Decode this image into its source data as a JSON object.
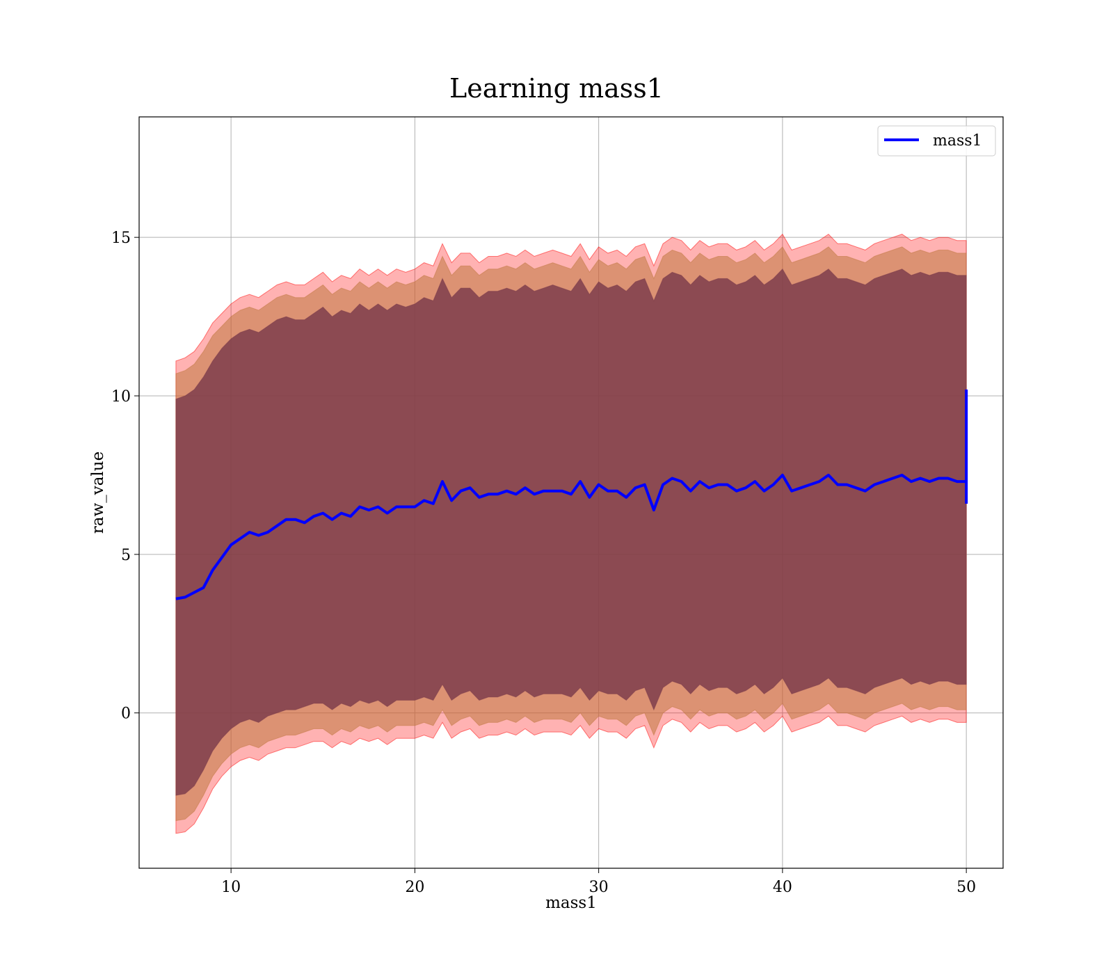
{
  "chart_data": {
    "type": "line",
    "title": "Learning mass1",
    "xlabel": "mass1",
    "ylabel": "raw_value",
    "xlim": [
      5,
      52
    ],
    "ylim": [
      -4.9,
      18.8
    ],
    "xticks": [
      10,
      20,
      30,
      40,
      50
    ],
    "xtick_labels": [
      "10",
      "20",
      "30",
      "40",
      "50"
    ],
    "yticks": [
      0,
      5,
      10,
      15
    ],
    "ytick_labels": [
      "0",
      "5",
      "10",
      "15"
    ],
    "grid": true,
    "legend": {
      "position": "top-right",
      "entries": [
        "mass1"
      ]
    },
    "colors": {
      "mean_line": "#0000ff",
      "band_outer": "#ff0000",
      "band_middle": "#c07840",
      "band_inner": "#7a3a4a",
      "grid": "#b0b0b0"
    },
    "series": [
      {
        "name": "mass1",
        "x": [
          7.0,
          7.5,
          8.0,
          8.5,
          9.0,
          9.5,
          10.0,
          10.5,
          11.0,
          11.5,
          12.0,
          12.5,
          13.0,
          13.5,
          14.0,
          14.5,
          15.0,
          15.5,
          16.0,
          16.5,
          17.0,
          17.5,
          18.0,
          18.5,
          19.0,
          19.5,
          20.0,
          20.5,
          21.0,
          21.5,
          22.0,
          22.5,
          23.0,
          23.5,
          24.0,
          24.5,
          25.0,
          25.5,
          26.0,
          26.5,
          27.0,
          27.5,
          28.0,
          28.5,
          29.0,
          29.5,
          30.0,
          30.5,
          31.0,
          31.5,
          32.0,
          32.5,
          33.0,
          33.5,
          34.0,
          34.5,
          35.0,
          35.5,
          36.0,
          36.5,
          37.0,
          37.5,
          38.0,
          38.5,
          39.0,
          39.5,
          40.0,
          40.5,
          41.0,
          41.5,
          42.0,
          42.5,
          43.0,
          43.5,
          44.0,
          44.5,
          45.0,
          45.5,
          46.0,
          46.5,
          47.0,
          47.5,
          48.0,
          48.5,
          49.0,
          49.5,
          50.0
        ],
        "y": [
          3.6,
          3.65,
          3.8,
          3.95,
          4.5,
          4.9,
          5.3,
          5.5,
          5.7,
          5.6,
          5.7,
          5.9,
          6.1,
          6.1,
          6.0,
          6.2,
          6.3,
          6.1,
          6.3,
          6.2,
          6.5,
          6.4,
          6.5,
          6.3,
          6.5,
          6.5,
          6.5,
          6.7,
          6.6,
          7.3,
          6.7,
          7.0,
          7.1,
          6.8,
          6.9,
          6.9,
          7.0,
          6.9,
          7.1,
          6.9,
          7.0,
          7.0,
          7.0,
          6.9,
          7.3,
          6.8,
          7.2,
          7.0,
          7.0,
          6.8,
          7.1,
          7.2,
          6.4,
          7.2,
          7.4,
          7.3,
          7.0,
          7.3,
          7.1,
          7.2,
          7.2,
          7.0,
          7.1,
          7.3,
          7.0,
          7.2,
          7.5,
          7.0,
          7.1,
          7.2,
          7.3,
          7.5,
          7.2,
          7.2,
          7.1,
          7.0,
          7.2,
          7.3,
          7.4,
          7.5,
          7.3,
          7.4,
          7.3,
          7.4,
          7.4,
          7.3,
          7.3
        ],
        "y_end_spike": [
          6.6,
          10.2
        ]
      }
    ],
    "bands": [
      {
        "upper": [
          11.1,
          11.2,
          11.4,
          11.8,
          12.3,
          12.6,
          12.9,
          13.1,
          13.2,
          13.1,
          13.3,
          13.5,
          13.6,
          13.5,
          13.5,
          13.7,
          13.9,
          13.6,
          13.8,
          13.7,
          14.0,
          13.8,
          14.0,
          13.8,
          14.0,
          13.9,
          14.0,
          14.2,
          14.1,
          14.8,
          14.2,
          14.5,
          14.5,
          14.2,
          14.4,
          14.4,
          14.5,
          14.4,
          14.6,
          14.4,
          14.5,
          14.6,
          14.5,
          14.4,
          14.8,
          14.3,
          14.7,
          14.5,
          14.6,
          14.4,
          14.7,
          14.8,
          14.1,
          14.8,
          15.0,
          14.9,
          14.6,
          14.9,
          14.7,
          14.8,
          14.8,
          14.6,
          14.7,
          14.9,
          14.6,
          14.8,
          15.1,
          14.6,
          14.7,
          14.8,
          14.9,
          15.1,
          14.8,
          14.8,
          14.7,
          14.6,
          14.8,
          14.9,
          15.0,
          15.1,
          14.9,
          15.0,
          14.9,
          15.0,
          15.0,
          14.9,
          14.9
        ],
        "lower": [
          -3.8,
          -3.75,
          -3.5,
          -3.0,
          -2.4,
          -2.0,
          -1.7,
          -1.5,
          -1.4,
          -1.5,
          -1.3,
          -1.2,
          -1.1,
          -1.1,
          -1.0,
          -0.9,
          -0.9,
          -1.1,
          -0.9,
          -1.0,
          -0.8,
          -0.9,
          -0.8,
          -1.0,
          -0.8,
          -0.8,
          -0.8,
          -0.7,
          -0.8,
          -0.3,
          -0.8,
          -0.6,
          -0.5,
          -0.8,
          -0.7,
          -0.7,
          -0.6,
          -0.7,
          -0.5,
          -0.7,
          -0.6,
          -0.6,
          -0.6,
          -0.7,
          -0.4,
          -0.8,
          -0.5,
          -0.6,
          -0.6,
          -0.8,
          -0.5,
          -0.4,
          -1.1,
          -0.4,
          -0.2,
          -0.3,
          -0.6,
          -0.3,
          -0.5,
          -0.4,
          -0.4,
          -0.6,
          -0.5,
          -0.3,
          -0.6,
          -0.4,
          -0.1,
          -0.6,
          -0.5,
          -0.4,
          -0.3,
          -0.1,
          -0.4,
          -0.4,
          -0.5,
          -0.6,
          -0.4,
          -0.3,
          -0.2,
          -0.1,
          -0.3,
          -0.2,
          -0.3,
          -0.2,
          -0.2,
          -0.3,
          -0.3
        ]
      },
      {
        "upper": [
          10.7,
          10.8,
          11.0,
          11.4,
          11.9,
          12.2,
          12.5,
          12.7,
          12.8,
          12.7,
          12.9,
          13.1,
          13.2,
          13.1,
          13.1,
          13.3,
          13.5,
          13.2,
          13.4,
          13.3,
          13.6,
          13.4,
          13.6,
          13.4,
          13.6,
          13.5,
          13.6,
          13.8,
          13.7,
          14.4,
          13.8,
          14.1,
          14.1,
          13.8,
          14.0,
          14.0,
          14.1,
          14.0,
          14.2,
          14.0,
          14.1,
          14.2,
          14.1,
          14.0,
          14.4,
          13.9,
          14.3,
          14.1,
          14.2,
          14.0,
          14.3,
          14.4,
          13.7,
          14.4,
          14.6,
          14.5,
          14.2,
          14.5,
          14.3,
          14.4,
          14.4,
          14.2,
          14.3,
          14.5,
          14.2,
          14.4,
          14.7,
          14.2,
          14.3,
          14.4,
          14.5,
          14.7,
          14.4,
          14.4,
          14.3,
          14.2,
          14.4,
          14.5,
          14.6,
          14.7,
          14.5,
          14.6,
          14.5,
          14.6,
          14.6,
          14.5,
          14.5
        ],
        "lower": [
          -3.4,
          -3.35,
          -3.1,
          -2.6,
          -2.0,
          -1.6,
          -1.3,
          -1.1,
          -1.0,
          -1.1,
          -0.9,
          -0.8,
          -0.7,
          -0.7,
          -0.6,
          -0.5,
          -0.5,
          -0.7,
          -0.5,
          -0.6,
          -0.4,
          -0.5,
          -0.4,
          -0.6,
          -0.4,
          -0.4,
          -0.4,
          -0.3,
          -0.4,
          0.1,
          -0.4,
          -0.2,
          -0.1,
          -0.4,
          -0.3,
          -0.3,
          -0.2,
          -0.3,
          -0.1,
          -0.3,
          -0.2,
          -0.2,
          -0.2,
          -0.3,
          0.0,
          -0.4,
          -0.1,
          -0.2,
          -0.2,
          -0.4,
          -0.1,
          0.0,
          -0.7,
          0.0,
          0.2,
          0.1,
          -0.2,
          0.1,
          -0.1,
          0.0,
          0.0,
          -0.2,
          -0.1,
          0.1,
          -0.2,
          0.0,
          0.3,
          -0.2,
          -0.1,
          0.0,
          0.1,
          0.3,
          0.0,
          0.0,
          -0.1,
          -0.2,
          0.0,
          0.1,
          0.2,
          0.3,
          0.1,
          0.2,
          0.1,
          0.2,
          0.2,
          0.1,
          0.1
        ]
      },
      {
        "upper": [
          9.9,
          10.0,
          10.2,
          10.6,
          11.1,
          11.5,
          11.8,
          12.0,
          12.1,
          12.0,
          12.2,
          12.4,
          12.5,
          12.4,
          12.4,
          12.6,
          12.8,
          12.5,
          12.7,
          12.6,
          12.9,
          12.7,
          12.9,
          12.7,
          12.9,
          12.8,
          12.9,
          13.1,
          13.0,
          13.7,
          13.1,
          13.4,
          13.4,
          13.1,
          13.3,
          13.3,
          13.4,
          13.3,
          13.5,
          13.3,
          13.4,
          13.5,
          13.4,
          13.3,
          13.7,
          13.2,
          13.6,
          13.4,
          13.5,
          13.3,
          13.6,
          13.7,
          13.0,
          13.7,
          13.9,
          13.8,
          13.5,
          13.8,
          13.6,
          13.7,
          13.7,
          13.5,
          13.6,
          13.8,
          13.5,
          13.7,
          14.0,
          13.5,
          13.6,
          13.7,
          13.8,
          14.0,
          13.7,
          13.7,
          13.6,
          13.5,
          13.7,
          13.8,
          13.9,
          14.0,
          13.8,
          13.9,
          13.8,
          13.9,
          13.9,
          13.8,
          13.8
        ],
        "lower": [
          -2.6,
          -2.55,
          -2.3,
          -1.8,
          -1.2,
          -0.8,
          -0.5,
          -0.3,
          -0.2,
          -0.3,
          -0.1,
          0.0,
          0.1,
          0.1,
          0.2,
          0.3,
          0.3,
          0.1,
          0.3,
          0.2,
          0.4,
          0.3,
          0.4,
          0.2,
          0.4,
          0.4,
          0.4,
          0.5,
          0.4,
          0.9,
          0.4,
          0.6,
          0.7,
          0.4,
          0.5,
          0.5,
          0.6,
          0.5,
          0.7,
          0.5,
          0.6,
          0.6,
          0.6,
          0.5,
          0.8,
          0.4,
          0.7,
          0.6,
          0.6,
          0.4,
          0.7,
          0.8,
          0.1,
          0.8,
          1.0,
          0.9,
          0.6,
          0.9,
          0.7,
          0.8,
          0.8,
          0.6,
          0.7,
          0.9,
          0.6,
          0.8,
          1.1,
          0.6,
          0.7,
          0.8,
          0.9,
          1.1,
          0.8,
          0.8,
          0.7,
          0.6,
          0.8,
          0.9,
          1.0,
          1.1,
          0.9,
          1.0,
          0.9,
          1.0,
          1.0,
          0.9,
          0.9
        ]
      }
    ]
  }
}
